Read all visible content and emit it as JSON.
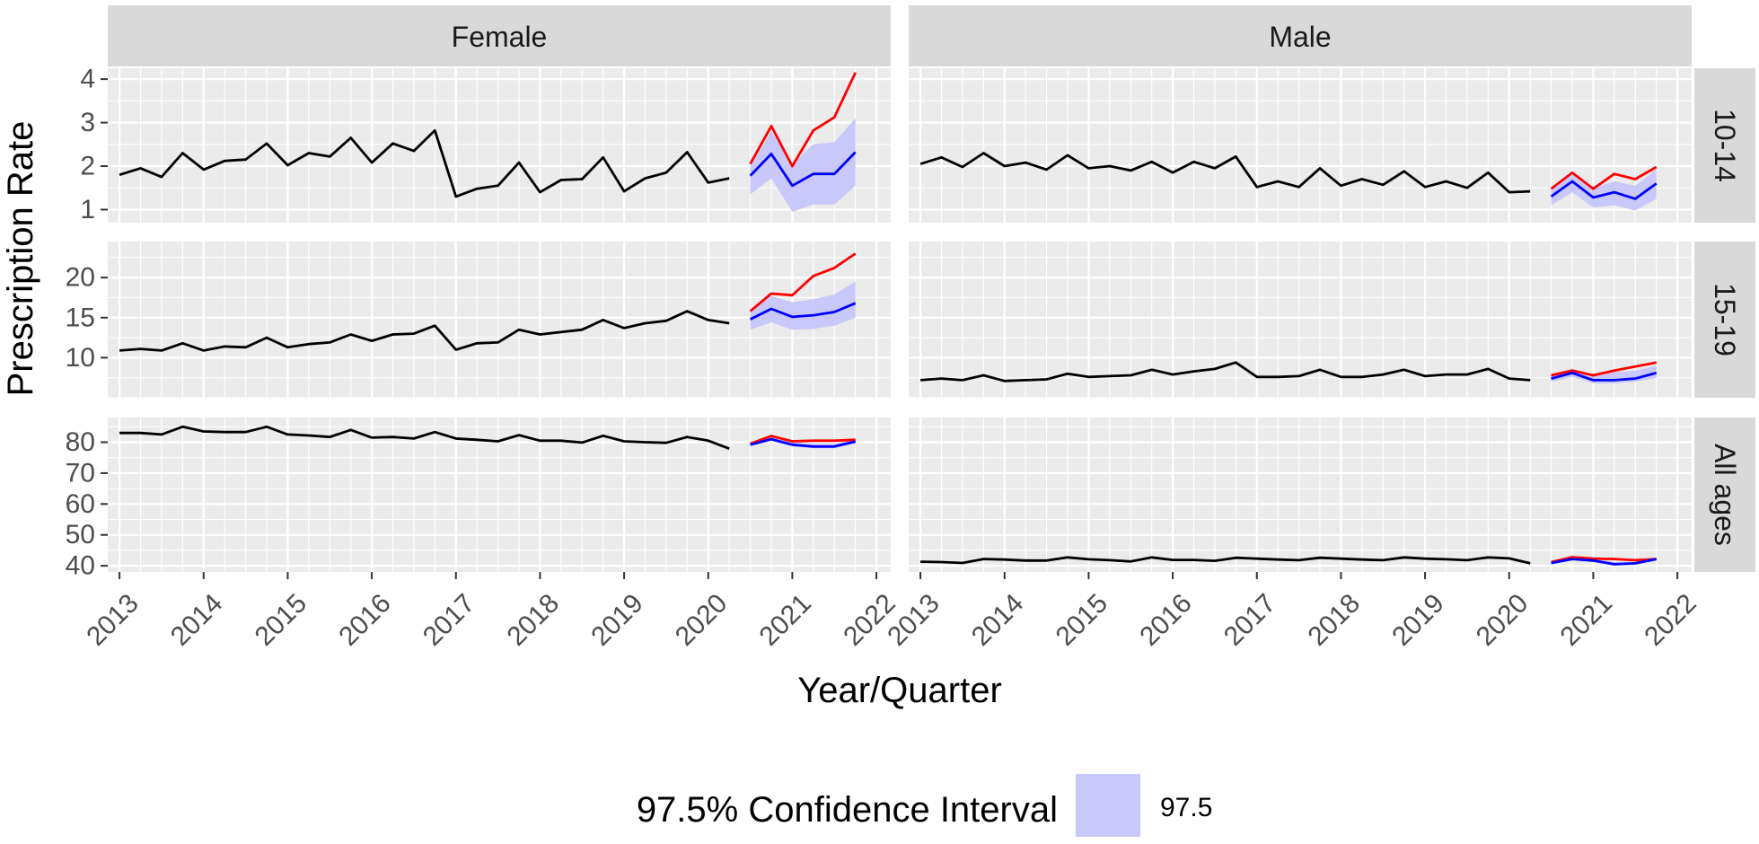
{
  "colors": {
    "panel_bg": "#ebebeb",
    "strip_bg": "#d9d9d9",
    "grid": "#ffffff",
    "observed": "#000000",
    "upper": "#ff0000",
    "predicted": "#0000ff",
    "ci_fill": "#c8c8fa"
  },
  "chart_data": {
    "type": "line",
    "xlabel": "Year/Quarter",
    "ylabel": "Prescription Rate",
    "x_ticks": [
      "2013",
      "2014",
      "2015",
      "2016",
      "2017",
      "2018",
      "2019",
      "2020",
      "2021",
      "2022"
    ],
    "xlim": [
      2013,
      2022
    ],
    "columns": [
      "Female",
      "Male"
    ],
    "rows": [
      "10-14",
      "15-19",
      "All ages"
    ],
    "row_axes": [
      {
        "ylim": [
          0.7,
          4.25
        ],
        "yticks": [
          "1",
          "2",
          "3",
          "4"
        ],
        "ytick_values": [
          1,
          2,
          3,
          4
        ]
      },
      {
        "ylim": [
          5.0,
          24.5
        ],
        "yticks": [
          "10",
          "15",
          "20"
        ],
        "ytick_values": [
          10,
          15,
          20
        ]
      },
      {
        "ylim": [
          38,
          88
        ],
        "yticks": [
          "40",
          "50",
          "60",
          "70",
          "80"
        ],
        "ytick_values": [
          40,
          50,
          60,
          70,
          80
        ]
      }
    ],
    "observed_x": [
      2013.0,
      2013.25,
      2013.5,
      2013.75,
      2014.0,
      2014.25,
      2014.5,
      2014.75,
      2015.0,
      2015.25,
      2015.5,
      2015.75,
      2016.0,
      2016.25,
      2016.5,
      2016.75,
      2017.0,
      2017.25,
      2017.5,
      2017.75,
      2018.0,
      2018.25,
      2018.5,
      2018.75,
      2019.0,
      2019.25,
      2019.5,
      2019.75,
      2020.0,
      2020.25
    ],
    "forecast_x": [
      2020.5,
      2020.75,
      2021.0,
      2021.25,
      2021.5,
      2021.75
    ],
    "panels": [
      {
        "column": "Female",
        "row": "10-14",
        "observed": [
          1.8,
          1.95,
          1.75,
          2.3,
          1.92,
          2.12,
          2.15,
          2.52,
          2.02,
          2.3,
          2.22,
          2.65,
          2.08,
          2.52,
          2.35,
          2.82,
          1.3,
          1.48,
          1.55,
          2.08,
          1.4,
          1.68,
          1.7,
          2.2,
          1.42,
          1.72,
          1.85,
          2.32,
          1.62,
          1.72
        ],
        "upper": [
          2.05,
          2.92,
          2.0,
          2.82,
          3.12,
          4.15
        ],
        "predicted": [
          1.78,
          2.28,
          1.55,
          1.82,
          1.82,
          2.32
        ],
        "ci_low": [
          1.35,
          1.72,
          0.95,
          1.12,
          1.12,
          1.55
        ],
        "ci_high": [
          2.0,
          2.8,
          2.05,
          2.5,
          2.55,
          3.1
        ]
      },
      {
        "column": "Male",
        "row": "10-14",
        "observed": [
          2.05,
          2.2,
          1.98,
          2.3,
          2.0,
          2.08,
          1.92,
          2.25,
          1.95,
          2.0,
          1.9,
          2.1,
          1.85,
          2.1,
          1.95,
          2.22,
          1.52,
          1.65,
          1.52,
          1.95,
          1.55,
          1.7,
          1.57,
          1.88,
          1.52,
          1.65,
          1.5,
          1.85,
          1.4,
          1.42
        ],
        "upper": [
          1.48,
          1.85,
          1.48,
          1.82,
          1.7,
          1.98
        ],
        "predicted": [
          1.3,
          1.65,
          1.28,
          1.4,
          1.25,
          1.6
        ],
        "ci_low": [
          1.1,
          1.4,
          1.05,
          1.1,
          0.98,
          1.25
        ],
        "ci_high": [
          1.5,
          1.85,
          1.5,
          1.65,
          1.55,
          1.92
        ]
      },
      {
        "column": "Female",
        "row": "15-19",
        "observed": [
          10.9,
          11.1,
          10.9,
          11.8,
          10.9,
          11.4,
          11.3,
          12.5,
          11.3,
          11.7,
          11.9,
          12.9,
          12.1,
          12.9,
          13.0,
          14.0,
          11.0,
          11.8,
          11.9,
          13.5,
          12.9,
          13.2,
          13.5,
          14.7,
          13.7,
          14.3,
          14.6,
          15.8,
          14.7,
          14.3
        ],
        "upper": [
          15.8,
          18.0,
          17.8,
          20.2,
          21.2,
          23.0
        ],
        "predicted": [
          14.8,
          16.1,
          15.1,
          15.3,
          15.7,
          16.8
        ],
        "ci_low": [
          13.5,
          14.4,
          13.5,
          13.6,
          14.0,
          15.0
        ],
        "ci_high": [
          15.8,
          17.7,
          16.9,
          17.3,
          17.9,
          19.5
        ]
      },
      {
        "column": "Male",
        "row": "15-19",
        "observed": [
          7.2,
          7.4,
          7.2,
          7.8,
          7.1,
          7.2,
          7.3,
          8.0,
          7.6,
          7.7,
          7.8,
          8.5,
          7.9,
          8.3,
          8.6,
          9.4,
          7.6,
          7.6,
          7.7,
          8.5,
          7.6,
          7.6,
          7.9,
          8.5,
          7.7,
          7.9,
          7.9,
          8.6,
          7.4,
          7.2
        ],
        "upper": [
          7.8,
          8.4,
          7.8,
          8.4,
          8.9,
          9.4
        ],
        "predicted": [
          7.4,
          8.1,
          7.2,
          7.2,
          7.4,
          8.1
        ],
        "ci_low": [
          7.0,
          7.6,
          6.8,
          6.8,
          7.0,
          7.5
        ],
        "ci_high": [
          7.9,
          8.6,
          7.9,
          8.2,
          8.4,
          9.0
        ]
      },
      {
        "column": "Female",
        "row": "All ages",
        "observed": [
          83.0,
          83.0,
          82.5,
          85.0,
          83.5,
          83.3,
          83.3,
          85.0,
          82.5,
          82.2,
          81.7,
          84.0,
          81.5,
          81.7,
          81.2,
          83.3,
          81.2,
          80.8,
          80.3,
          82.3,
          80.5,
          80.5,
          79.9,
          82.1,
          80.3,
          80.0,
          79.8,
          81.7,
          80.5,
          77.9
        ],
        "upper": [
          79.5,
          82.0,
          80.3,
          80.5,
          80.5,
          80.8
        ],
        "predicted": [
          79.2,
          81.0,
          79.2,
          78.6,
          78.6,
          80.2
        ],
        "ci_low": [
          78.8,
          80.4,
          78.6,
          78.0,
          78.0,
          79.6
        ],
        "ci_high": [
          79.7,
          81.5,
          80.0,
          79.5,
          79.5,
          80.9
        ]
      },
      {
        "column": "Male",
        "row": "All ages",
        "observed": [
          41.3,
          41.2,
          40.9,
          42.2,
          42.0,
          41.7,
          41.7,
          42.7,
          42.1,
          41.8,
          41.4,
          42.7,
          41.9,
          41.9,
          41.6,
          42.6,
          42.3,
          42.0,
          41.8,
          42.6,
          42.3,
          42.0,
          41.8,
          42.7,
          42.3,
          42.1,
          41.8,
          42.7,
          42.4,
          40.8
        ],
        "upper": [
          41.2,
          42.8,
          42.3,
          42.2,
          41.8,
          42.2
        ],
        "predicted": [
          40.9,
          42.2,
          41.7,
          40.5,
          40.8,
          42.2
        ],
        "ci_low": [
          40.4,
          41.7,
          41.2,
          40.0,
          40.3,
          41.6
        ],
        "ci_high": [
          41.3,
          42.7,
          42.2,
          41.2,
          41.3,
          42.6
        ]
      }
    ],
    "legend": {
      "title": "97.5% Confidence Interval",
      "label": "97.5",
      "position": "bottom"
    }
  }
}
